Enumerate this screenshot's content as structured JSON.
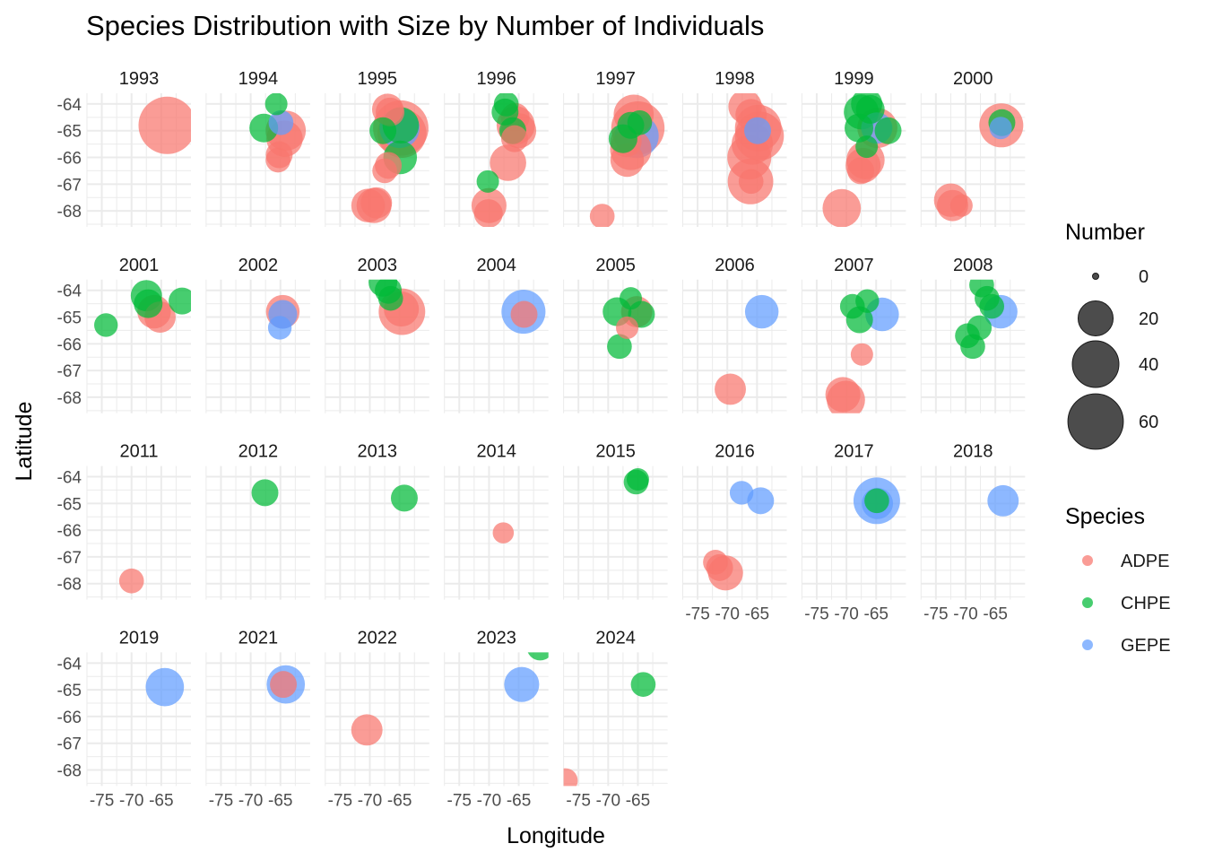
{
  "chart_data": {
    "type": "scatter",
    "title": "Species Distribution with Size by Number of Individuals",
    "xlabel": "Longitude",
    "ylabel": "Latitude",
    "xlim": [
      -77.5,
      -60
    ],
    "ylim": [
      -68.6,
      -63.6
    ],
    "x_ticks": [
      -75,
      -70,
      -65
    ],
    "y_ticks": [
      -64,
      -65,
      -66,
      -67,
      -68
    ],
    "x_tick_labels": [
      "-75",
      "-70",
      "-65"
    ],
    "y_tick_labels": [
      "-64",
      "-65",
      "-66",
      "-67",
      "-68"
    ],
    "grid": true,
    "facet_by": "year",
    "size_legend": {
      "title": "Number",
      "breaks": [
        0,
        20,
        40,
        60
      ],
      "labels": [
        "0",
        "20",
        "40",
        "60"
      ]
    },
    "color_legend": {
      "title": "Species",
      "entries": [
        {
          "label": "ADPE",
          "color": "#F8766D"
        },
        {
          "label": "CHPE",
          "color": "#00BA38"
        },
        {
          "label": "GEPE",
          "color": "#619CFF"
        }
      ]
    },
    "colors": {
      "ADPE": "#F8766D",
      "CHPE": "#00BA38",
      "GEPE": "#619CFF"
    },
    "panels": [
      {
        "year": "1993",
        "points": [
          [
            "ADPE",
            -64.0,
            -64.8,
            65
          ]
        ]
      },
      {
        "year": "1994",
        "points": [
          [
            "CHPE",
            -65.7,
            -64.0,
            6
          ],
          [
            "CHPE",
            -67.8,
            -64.9,
            12
          ],
          [
            "GEPE",
            -64.9,
            -64.7,
            8
          ],
          [
            "ADPE",
            -64.1,
            -65.0,
            28
          ],
          [
            "ADPE",
            -64.3,
            -65.3,
            22
          ],
          [
            "ADPE",
            -65.2,
            -65.9,
            10
          ],
          [
            "ADPE",
            -65.4,
            -66.1,
            8
          ]
        ]
      },
      {
        "year": "1995",
        "points": [
          [
            "ADPE",
            -67.0,
            -64.2,
            15
          ],
          [
            "ADPE",
            -66.6,
            -64.3,
            12
          ],
          [
            "CHPE",
            -67.8,
            -65.0,
            10
          ],
          [
            "ADPE",
            -64.8,
            -64.9,
            60
          ],
          [
            "ADPE",
            -64.6,
            -65.1,
            45
          ],
          [
            "GEPE",
            -65.0,
            -64.9,
            28
          ],
          [
            "CHPE",
            -64.8,
            -64.8,
            22
          ],
          [
            "CHPE",
            -64.9,
            -66.0,
            18
          ],
          [
            "ADPE",
            -66.9,
            -66.3,
            10
          ],
          [
            "ADPE",
            -67.5,
            -66.5,
            8
          ],
          [
            "ADPE",
            -70.3,
            -67.8,
            18
          ],
          [
            "ADPE",
            -69.3,
            -67.8,
            20
          ],
          [
            "ADPE",
            -68.9,
            -67.7,
            15
          ]
        ]
      },
      {
        "year": "1996",
        "points": [
          [
            "CHPE",
            -67.1,
            -64.0,
            8
          ],
          [
            "CHPE",
            -67.3,
            -64.3,
            10
          ],
          [
            "CHPE",
            -66.0,
            -65.0,
            10
          ],
          [
            "ADPE",
            -65.5,
            -64.8,
            25
          ],
          [
            "ADPE",
            -65.0,
            -65.0,
            20
          ],
          [
            "ADPE",
            -65.6,
            -64.5,
            12
          ],
          [
            "ADPE",
            -65.7,
            -65.3,
            10
          ],
          [
            "ADPE",
            -66.8,
            -66.2,
            22
          ],
          [
            "CHPE",
            -70.2,
            -66.9,
            6
          ],
          [
            "ADPE",
            -70.0,
            -67.8,
            20
          ],
          [
            "ADPE",
            -70.1,
            -68.1,
            12
          ]
        ]
      },
      {
        "year": "1997",
        "points": [
          [
            "ADPE",
            -65.7,
            -64.4,
            28
          ],
          [
            "ADPE",
            -65.0,
            -64.9,
            55
          ],
          [
            "CHPE",
            -67.5,
            -65.3,
            12
          ],
          [
            "CHPE",
            -66.2,
            -64.8,
            10
          ],
          [
            "GEPE",
            -65.2,
            -65.2,
            35
          ],
          [
            "ADPE",
            -66.2,
            -65.7,
            30
          ],
          [
            "ADPE",
            -66.8,
            -66.1,
            18
          ],
          [
            "ADPE",
            -67.0,
            -65.4,
            15
          ],
          [
            "CHPE",
            -64.7,
            -64.7,
            8
          ],
          [
            "ADPE",
            -71.0,
            -68.2,
            8
          ]
        ]
      },
      {
        "year": "1998",
        "points": [
          [
            "ADPE",
            -67.0,
            -64.1,
            18
          ],
          [
            "ADPE",
            -66.0,
            -64.4,
            15
          ],
          [
            "ADPE",
            -64.8,
            -64.9,
            40
          ],
          [
            "ADPE",
            -64.6,
            -65.2,
            45
          ],
          [
            "ADPE",
            -65.8,
            -65.5,
            30
          ],
          [
            "ADPE",
            -66.3,
            -66.0,
            35
          ],
          [
            "ADPE",
            -66.1,
            -66.9,
            38
          ],
          [
            "ADPE",
            -66.0,
            -66.9,
            8
          ],
          [
            "GEPE",
            -64.9,
            -65.0,
            10
          ]
        ]
      },
      {
        "year": "1999",
        "points": [
          [
            "CHPE",
            -67.5,
            -64.3,
            20
          ],
          [
            "CHPE",
            -66.6,
            -64.0,
            15
          ],
          [
            "CHPE",
            -66.0,
            -64.2,
            12
          ],
          [
            "CHPE",
            -67.9,
            -64.9,
            12
          ],
          [
            "CHPE",
            -63.0,
            -65.0,
            10
          ],
          [
            "ADPE",
            -64.8,
            -64.9,
            28
          ],
          [
            "GEPE",
            -64.9,
            -64.9,
            15
          ],
          [
            "ADPE",
            -66.8,
            -66.1,
            25
          ],
          [
            "ADPE",
            -67.2,
            -66.3,
            20
          ],
          [
            "CHPE",
            -66.6,
            -65.6,
            6
          ],
          [
            "ADPE",
            -67.6,
            -66.5,
            10
          ],
          [
            "ADPE",
            -70.8,
            -67.9,
            25
          ]
        ]
      },
      {
        "year": "2000",
        "points": [
          [
            "ADPE",
            -64.0,
            -64.8,
            35
          ],
          [
            "CHPE",
            -63.9,
            -64.7,
            10
          ],
          [
            "GEPE",
            -64.1,
            -64.9,
            6
          ],
          [
            "ADPE",
            -72.5,
            -67.6,
            18
          ],
          [
            "ADPE",
            -72.2,
            -67.8,
            15
          ],
          [
            "ADPE",
            -70.7,
            -67.8,
            6
          ]
        ]
      },
      {
        "year": "2001",
        "points": [
          [
            "CHPE",
            -67.5,
            -64.2,
            15
          ],
          [
            "CHPE",
            -67.2,
            -64.5,
            12
          ],
          [
            "ADPE",
            -66.2,
            -64.8,
            18
          ],
          [
            "ADPE",
            -65.2,
            -65.0,
            15
          ],
          [
            "CHPE",
            -61.5,
            -64.4,
            10
          ],
          [
            "CHPE",
            -74.3,
            -65.3,
            7
          ]
        ]
      },
      {
        "year": "2002",
        "points": [
          [
            "ADPE",
            -64.6,
            -64.8,
            18
          ],
          [
            "GEPE",
            -64.6,
            -64.9,
            12
          ],
          [
            "GEPE",
            -65.1,
            -65.4,
            7
          ]
        ]
      },
      {
        "year": "2003",
        "points": [
          [
            "CHPE",
            -67.8,
            -63.7,
            12
          ],
          [
            "CHPE",
            -66.9,
            -64.0,
            10
          ],
          [
            "CHPE",
            -66.5,
            -64.3,
            8
          ],
          [
            "ADPE",
            -64.6,
            -64.8,
            40
          ],
          [
            "ADPE",
            -64.7,
            -64.7,
            20
          ]
        ]
      },
      {
        "year": "2004",
        "points": [
          [
            "GEPE",
            -64.2,
            -64.8,
            35
          ],
          [
            "ADPE",
            -64.1,
            -64.9,
            10
          ]
        ]
      },
      {
        "year": "2005",
        "points": [
          [
            "CHPE",
            -66.2,
            -64.3,
            6
          ],
          [
            "CHPE",
            -68.5,
            -64.8,
            12
          ],
          [
            "ADPE",
            -65.2,
            -64.8,
            15
          ],
          [
            "CHPE",
            -64.4,
            -64.9,
            10
          ],
          [
            "ADPE",
            -66.8,
            -65.4,
            6
          ],
          [
            "CHPE",
            -68.1,
            -66.1,
            8
          ]
        ]
      },
      {
        "year": "2006",
        "points": [
          [
            "GEPE",
            -64.2,
            -64.8,
            18
          ],
          [
            "ADPE",
            -69.5,
            -67.7,
            15
          ]
        ]
      },
      {
        "year": "2007",
        "points": [
          [
            "CHPE",
            -69.0,
            -64.6,
            8
          ],
          [
            "CHPE",
            -66.5,
            -64.4,
            7
          ],
          [
            "CHPE",
            -67.8,
            -65.1,
            10
          ],
          [
            "GEPE",
            -64.0,
            -64.9,
            18
          ],
          [
            "ADPE",
            -67.4,
            -66.4,
            6
          ],
          [
            "ADPE",
            -70.6,
            -67.9,
            20
          ],
          [
            "ADPE",
            -70.1,
            -68.1,
            25
          ]
        ]
      },
      {
        "year": "2008",
        "points": [
          [
            "CHPE",
            -67.3,
            -63.8,
            8
          ],
          [
            "CHPE",
            -66.4,
            -64.3,
            8
          ],
          [
            "CHPE",
            -65.6,
            -64.6,
            8
          ],
          [
            "GEPE",
            -64.1,
            -64.8,
            18
          ],
          [
            "CHPE",
            -69.7,
            -65.7,
            8
          ],
          [
            "CHPE",
            -67.7,
            -65.4,
            8
          ],
          [
            "CHPE",
            -68.8,
            -66.1,
            8
          ]
        ]
      },
      {
        "year": "2011",
        "points": [
          [
            "ADPE",
            -70.0,
            -67.9,
            8
          ]
        ]
      },
      {
        "year": "2012",
        "points": [
          [
            "CHPE",
            -67.6,
            -64.6,
            10
          ]
        ]
      },
      {
        "year": "2013",
        "points": [
          [
            "CHPE",
            -64.2,
            -64.8,
            10
          ]
        ]
      },
      {
        "year": "2014",
        "points": [
          [
            "ADPE",
            -67.6,
            -66.1,
            5
          ]
        ]
      },
      {
        "year": "2015",
        "points": [
          [
            "CHPE",
            -65.3,
            -64.2,
            8
          ],
          [
            "CHPE",
            -65.0,
            -64.1,
            6
          ]
        ]
      },
      {
        "year": "2016",
        "points": [
          [
            "GEPE",
            -67.6,
            -64.6,
            7
          ],
          [
            "GEPE",
            -64.4,
            -64.9,
            10
          ],
          [
            "ADPE",
            -72.0,
            -67.2,
            8
          ],
          [
            "ADPE",
            -71.3,
            -67.4,
            10
          ],
          [
            "ADPE",
            -70.3,
            -67.6,
            20
          ]
        ]
      },
      {
        "year": "2017",
        "points": [
          [
            "GEPE",
            -64.9,
            -64.9,
            40
          ],
          [
            "GEPE",
            -64.8,
            -65.0,
            15
          ],
          [
            "CHPE",
            -64.9,
            -64.9,
            8
          ]
        ]
      },
      {
        "year": "2018",
        "points": [
          [
            "GEPE",
            -63.7,
            -64.9,
            15
          ]
        ]
      },
      {
        "year": "2019",
        "points": [
          [
            "GEPE",
            -64.4,
            -64.9,
            25
          ]
        ]
      },
      {
        "year": "2021",
        "points": [
          [
            "GEPE",
            -64.1,
            -64.8,
            25
          ],
          [
            "ADPE",
            -64.5,
            -64.8,
            10
          ]
        ]
      },
      {
        "year": "2022",
        "points": [
          [
            "ADPE",
            -70.5,
            -66.5,
            15
          ]
        ]
      },
      {
        "year": "2023",
        "points": [
          [
            "CHPE",
            -61.4,
            -63.4,
            10
          ],
          [
            "GEPE",
            -64.5,
            -64.8,
            20
          ]
        ]
      },
      {
        "year": "2024",
        "points": [
          [
            "ADPE",
            -77.2,
            -68.4,
            8
          ],
          [
            "CHPE",
            -64.1,
            -64.8,
            8
          ]
        ]
      }
    ]
  }
}
